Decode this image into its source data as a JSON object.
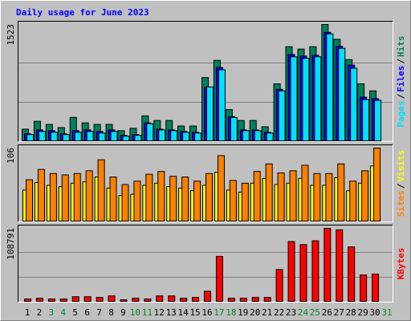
{
  "chart_data": [
    {
      "type": "bar",
      "title": "Daily usage for June 2023",
      "categories": [
        "1",
        "2",
        "3",
        "4",
        "5",
        "6",
        "7",
        "8",
        "9",
        "10",
        "11",
        "12",
        "13",
        "14",
        "15",
        "16",
        "17",
        "18",
        "19",
        "20",
        "21",
        "22",
        "23",
        "24",
        "25",
        "26",
        "27",
        "28",
        "29",
        "30",
        "31"
      ],
      "label_colors": [
        "#000000",
        "#000000",
        "#008040",
        "#008040",
        "#000000",
        "#000000",
        "#000000",
        "#000000",
        "#000000",
        "#008040",
        "#008040",
        "#000000",
        "#000000",
        "#000000",
        "#000000",
        "#000000",
        "#008040",
        "#008040",
        "#000000",
        "#000000",
        "#000000",
        "#000000",
        "#000000",
        "#008040",
        "#008040",
        "#000000",
        "#000000",
        "#000000",
        "#000000",
        "#000000",
        "#008040"
      ],
      "legend_separator": "/",
      "ylim": [
        0,
        1523
      ],
      "yticks": [
        1523
      ],
      "grid": true,
      "series": [
        {
          "name": "Hits",
          "color": "#00805c",
          "values": [
            153,
            256,
            215,
            174,
            307,
            235,
            215,
            215,
            133,
            164,
            327,
            266,
            266,
            194,
            194,
            828,
            1053,
            409,
            266,
            266,
            184,
            746,
            1232,
            1201,
            1232,
            1523,
            1329,
            1063,
            746,
            654,
            0
          ]
        },
        {
          "name": "Files",
          "color": "#0000ff",
          "values": [
            92,
            143,
            133,
            92,
            133,
            143,
            123,
            143,
            72,
            82,
            235,
            153,
            143,
            123,
            112,
            705,
            961,
            317,
            143,
            143,
            112,
            674,
            1130,
            1110,
            1120,
            1420,
            1237,
            991,
            572,
            552,
            0
          ]
        },
        {
          "name": "Pages",
          "color": "#00e0ff",
          "values": [
            82,
            123,
            112,
            82,
            112,
            123,
            102,
            123,
            61,
            72,
            225,
            143,
            133,
            112,
            102,
            705,
            930,
            307,
            133,
            133,
            102,
            654,
            1100,
            1080,
            1100,
            1400,
            1210,
            950,
            540,
            530,
            0
          ]
        }
      ]
    },
    {
      "type": "bar",
      "ylim": [
        0,
        106
      ],
      "yticks": [
        106
      ],
      "grid": false,
      "series": [
        {
          "name": "Visits",
          "color": "#ffff00",
          "values": [
            45,
            56,
            52,
            50,
            55,
            57,
            64,
            48,
            37,
            39,
            52,
            55,
            50,
            48,
            44,
            52,
            71,
            45,
            42,
            55,
            62,
            53,
            55,
            62,
            52,
            52,
            63,
            44,
            55,
            80,
            0
          ]
        },
        {
          "name": "Sites",
          "color": "#ff8000",
          "values": [
            60,
            75,
            69,
            67,
            69,
            73,
            89,
            64,
            53,
            58,
            68,
            72,
            65,
            64,
            58,
            69,
            95,
            59,
            55,
            72,
            83,
            70,
            73,
            81,
            69,
            69,
            83,
            58,
            73,
            106,
            0
          ]
        }
      ]
    },
    {
      "type": "bar",
      "ylim": [
        0,
        108791
      ],
      "yticks": [
        108791
      ],
      "grid": true,
      "series": [
        {
          "name": "KBytes",
          "color": "#ff0000",
          "values": [
            3500,
            4600,
            3500,
            3500,
            6900,
            6900,
            5800,
            8100,
            2300,
            4600,
            3500,
            8100,
            8100,
            4600,
            5800,
            15000,
            67100,
            4600,
            4600,
            5800,
            5800,
            47400,
            89100,
            84500,
            90200,
            108791,
            106500,
            81000,
            39300,
            40500,
            0
          ]
        }
      ]
    }
  ]
}
